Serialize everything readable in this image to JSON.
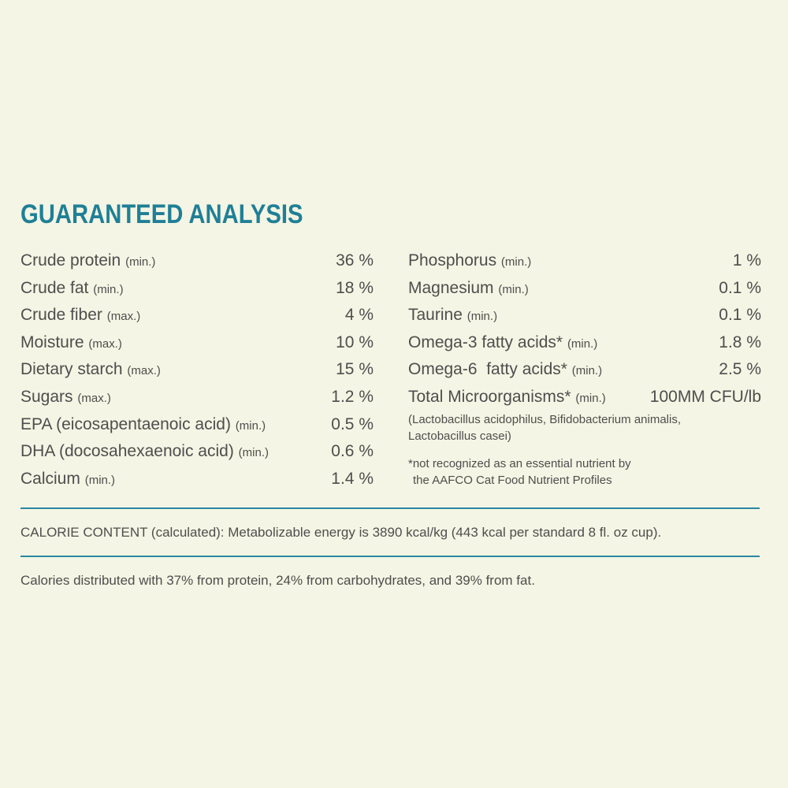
{
  "title": "GUARANTEED ANALYSIS",
  "left_rows": [
    {
      "name": "Crude protein",
      "qualifier": "(min.)",
      "value": "36 %"
    },
    {
      "name": "Crude fat",
      "qualifier": "(min.)",
      "value": "18 %"
    },
    {
      "name": "Crude fiber",
      "qualifier": "(max.)",
      "value": "4 %"
    },
    {
      "name": "Moisture",
      "qualifier": "(max.)",
      "value": "10 %"
    },
    {
      "name": "Dietary starch",
      "qualifier": "(max.)",
      "value": "15 %"
    },
    {
      "name": "Sugars",
      "qualifier": "(max.)",
      "value": "1.2 %"
    },
    {
      "name": "EPA (eicosapentaenoic acid)",
      "qualifier": "(min.)",
      "value": "0.5 %"
    },
    {
      "name": "DHA (docosahexaenoic acid)",
      "qualifier": "(min.)",
      "value": "0.6 %"
    },
    {
      "name": "Calcium",
      "qualifier": "(min.)",
      "value": "1.4 %"
    }
  ],
  "right_rows": [
    {
      "name": "Phosphorus",
      "qualifier": "(min.)",
      "value": "1 %"
    },
    {
      "name": "Magnesium",
      "qualifier": "(min.)",
      "value": "0.1 %"
    },
    {
      "name": "Taurine",
      "qualifier": "(min.)",
      "value": "0.1 %"
    },
    {
      "name": "Omega-3 fatty acids*",
      "qualifier": "(min.)",
      "value": "1.8 %"
    },
    {
      "name": "Omega-6  fatty acids*",
      "qualifier": "(min.)",
      "value": "2.5 %"
    },
    {
      "name": "Total Microorganisms*",
      "qualifier": "(min.)",
      "value": "100MM CFU/lb"
    }
  ],
  "microorganisms_list": {
    "line1": "(Lactobacillus acidophilus, Bifidobacterium animalis,",
    "line2": "Lactobacillus casei)"
  },
  "footnote": {
    "line1": "*not recognized as an essential nutrient by",
    "line2": "the AAFCO Cat Food Nutrient Profiles"
  },
  "calorie_content": "CALORIE CONTENT (calculated): Metabolizable energy is 3890 kcal/kg (443 kcal per standard 8 fl. oz cup).",
  "calorie_distribution": "Calories distributed with 37% from protein, 24% from carbohydrates, and 39% from fat.",
  "colors": {
    "accent": "#1f7f96",
    "text": "#4e4e4e",
    "background": "#f4f5e4"
  }
}
